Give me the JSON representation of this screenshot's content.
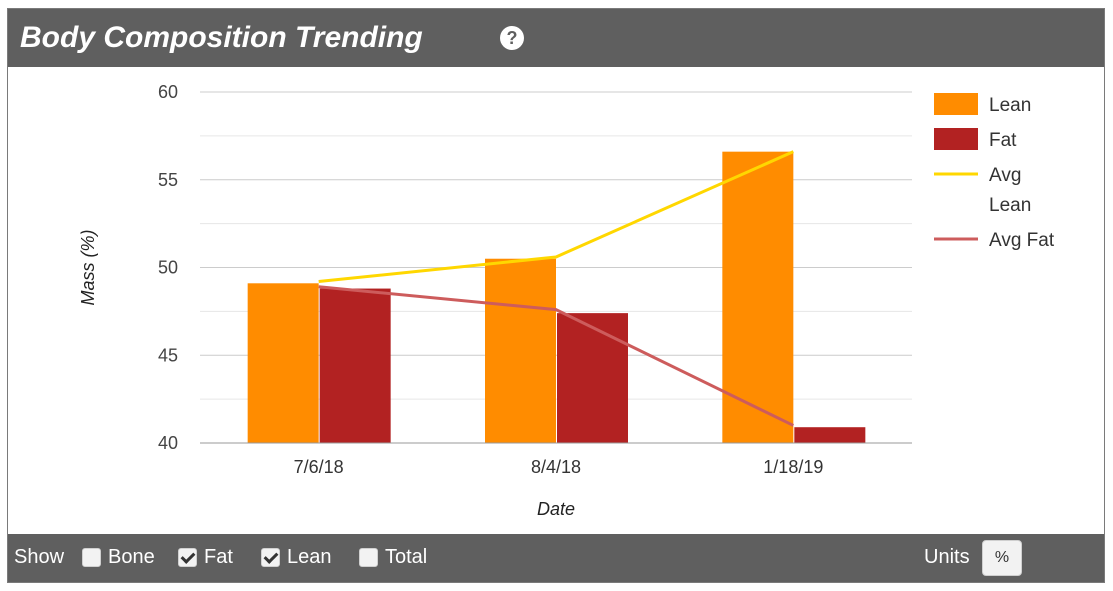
{
  "header": {
    "title": "Body Composition Trending",
    "help_icon": "question-circle-icon"
  },
  "chart_data": {
    "type": "bar",
    "categories": [
      "7/6/18",
      "8/4/18",
      "1/18/19"
    ],
    "series": [
      {
        "name": "Lean",
        "type": "bar",
        "color": "#ff8c00",
        "values": [
          49.1,
          50.5,
          56.6
        ]
      },
      {
        "name": "Fat",
        "type": "bar",
        "color": "#b22222",
        "values": [
          48.8,
          47.4,
          40.9
        ]
      },
      {
        "name": "Avg Lean",
        "type": "line",
        "color": "#ffd700",
        "values": [
          49.2,
          50.6,
          56.6
        ]
      },
      {
        "name": "Avg Fat",
        "type": "line",
        "color": "#cd5c5c",
        "values": [
          48.9,
          47.6,
          41.0
        ]
      }
    ],
    "xlabel": "Date",
    "ylabel": "Mass (%)",
    "ylim": [
      40,
      60
    ],
    "yticks": [
      40,
      45,
      50,
      55,
      60
    ],
    "grid": true,
    "legend": "right"
  },
  "footer": {
    "show_label": "Show",
    "options": [
      {
        "label": "Bone",
        "checked": false
      },
      {
        "label": "Fat",
        "checked": true
      },
      {
        "label": "Lean",
        "checked": true
      },
      {
        "label": "Total",
        "checked": false
      }
    ],
    "units_label": "Units",
    "units_value": "%"
  }
}
